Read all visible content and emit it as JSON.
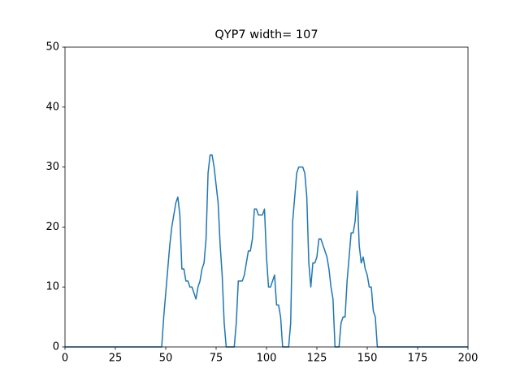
{
  "chart_data": {
    "type": "line",
    "title": "QYP7 width= 107",
    "x": [
      0,
      1,
      2,
      3,
      4,
      5,
      6,
      7,
      8,
      9,
      10,
      11,
      12,
      13,
      14,
      15,
      16,
      17,
      18,
      19,
      20,
      21,
      22,
      23,
      24,
      25,
      26,
      27,
      28,
      29,
      30,
      31,
      32,
      33,
      34,
      35,
      36,
      37,
      38,
      39,
      40,
      41,
      42,
      43,
      44,
      45,
      46,
      47,
      48,
      49,
      50,
      51,
      52,
      53,
      54,
      55,
      56,
      57,
      58,
      59,
      60,
      61,
      62,
      63,
      64,
      65,
      66,
      67,
      68,
      69,
      70,
      71,
      72,
      73,
      74,
      75,
      76,
      77,
      78,
      79,
      80,
      81,
      82,
      83,
      84,
      85,
      86,
      87,
      88,
      89,
      90,
      91,
      92,
      93,
      94,
      95,
      96,
      97,
      98,
      99,
      100,
      101,
      102,
      103,
      104,
      105,
      106,
      107,
      108,
      109,
      110,
      111,
      112,
      113,
      114,
      115,
      116,
      117,
      118,
      119,
      120,
      121,
      122,
      123,
      124,
      125,
      126,
      127,
      128,
      129,
      130,
      131,
      132,
      133,
      134,
      135,
      136,
      137,
      138,
      139,
      140,
      141,
      142,
      143,
      144,
      145,
      146,
      147,
      148,
      149,
      150,
      151,
      152,
      153,
      154,
      155,
      156,
      157,
      158,
      159,
      160,
      161,
      162,
      163,
      164,
      165,
      166,
      167,
      168,
      169,
      170,
      171,
      172,
      173,
      174,
      175,
      176,
      177,
      178,
      179,
      180,
      181,
      182,
      183,
      184,
      185,
      186,
      187,
      188,
      189,
      190,
      191,
      192,
      193,
      194,
      195,
      196,
      197,
      198,
      199,
      200
    ],
    "series": [
      {
        "name": "QYP7",
        "color": "#1f77b4",
        "values": [
          0,
          0,
          0,
          0,
          0,
          0,
          0,
          0,
          0,
          0,
          0,
          0,
          0,
          0,
          0,
          0,
          0,
          0,
          0,
          0,
          0,
          0,
          0,
          0,
          0,
          0,
          0,
          0,
          0,
          0,
          0,
          0,
          0,
          0,
          0,
          0,
          0,
          0,
          0,
          0,
          0,
          0,
          0,
          0,
          0,
          0,
          0,
          0,
          0,
          5,
          9,
          13,
          17,
          20,
          22,
          24,
          25,
          22,
          13,
          13,
          11,
          11,
          10,
          10,
          9,
          8,
          10,
          11,
          13,
          14,
          18,
          29,
          32,
          32,
          30,
          27,
          24,
          17,
          12,
          4,
          0,
          0,
          0,
          0,
          0,
          4,
          11,
          11,
          11,
          12,
          14,
          16,
          16,
          18,
          23,
          23,
          22,
          22,
          22,
          23,
          15,
          10,
          10,
          11,
          12,
          7,
          7,
          5,
          0,
          0,
          0,
          0,
          4,
          21,
          25,
          29,
          30,
          30,
          30,
          29,
          25,
          14,
          10,
          14,
          14,
          15,
          18,
          18,
          17,
          16,
          15,
          13,
          10,
          8,
          0,
          0,
          0,
          4,
          5,
          5,
          11,
          15,
          19,
          19,
          21,
          26,
          17,
          14,
          15,
          13,
          12,
          10,
          10,
          6,
          5,
          0,
          0,
          0,
          0,
          0,
          0,
          0,
          0,
          0,
          0,
          0,
          0,
          0,
          0,
          0,
          0,
          0,
          0,
          0,
          0,
          0,
          0,
          0,
          0,
          0,
          0,
          0,
          0,
          0,
          0,
          0,
          0,
          0,
          0,
          0,
          0,
          0,
          0,
          0,
          0,
          0,
          0,
          0,
          0,
          0,
          0
        ]
      }
    ],
    "xlim": [
      0,
      200
    ],
    "xticks": [
      0,
      25,
      50,
      75,
      100,
      125,
      150,
      175,
      200
    ],
    "ylim": [
      0,
      50
    ],
    "yticks": [
      0,
      10,
      20,
      30,
      40,
      50
    ],
    "grid": false
  }
}
